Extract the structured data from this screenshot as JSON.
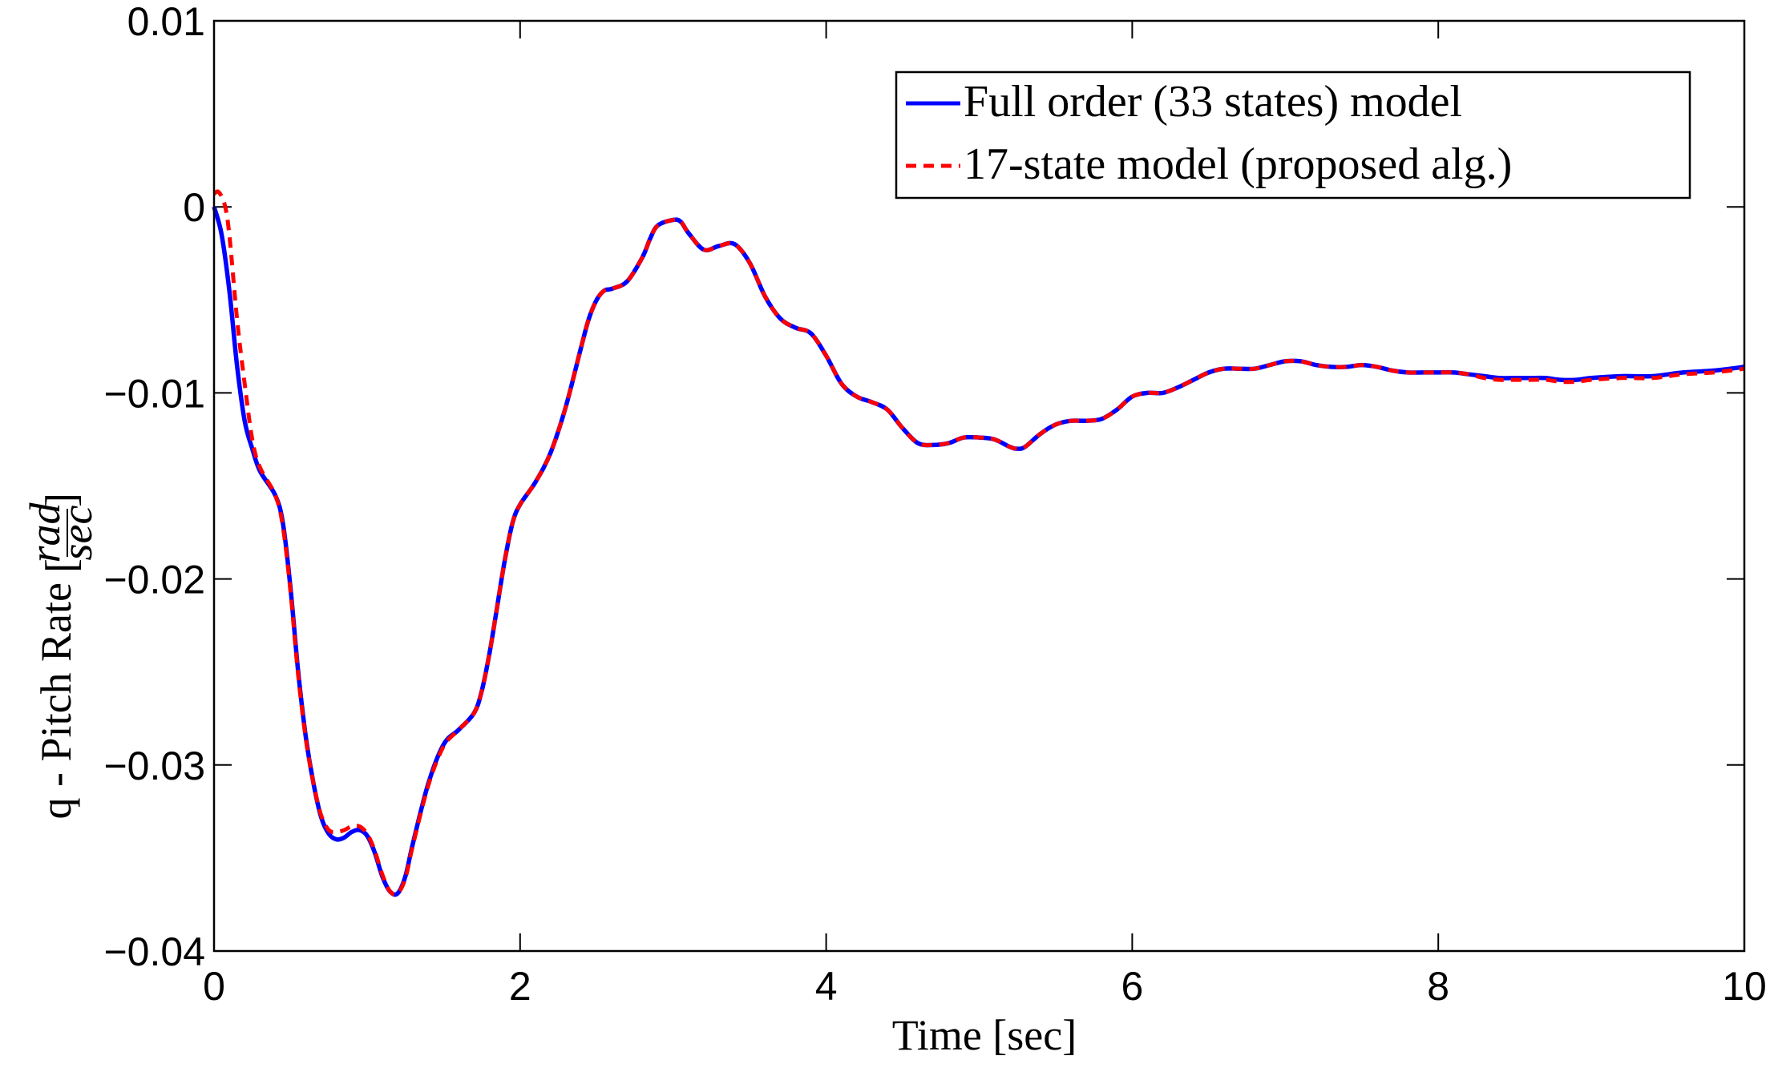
{
  "chart_data": {
    "type": "line",
    "title": "",
    "xlabel": "Time [sec]",
    "ylabel": {
      "prefix": "q - Pitch Rate",
      "unit_numerator": "rad",
      "unit_denominator": "sec"
    },
    "xlim": [
      0,
      10
    ],
    "ylim": [
      -0.04,
      0.01
    ],
    "xticks": [
      0,
      2,
      4,
      6,
      8,
      10
    ],
    "xtick_labels": [
      "0",
      "2",
      "4",
      "6",
      "8",
      "10"
    ],
    "yticks": [
      0.01,
      0,
      -0.01,
      -0.02,
      -0.03,
      -0.04
    ],
    "ytick_labels": [
      "0.01",
      "0",
      "−0.01",
      "−0.02",
      "−0.03",
      "−0.04"
    ],
    "grid": false,
    "legend_position": "top-right",
    "series": [
      {
        "name": "Full order (33 states) model",
        "color": "#0000ff",
        "style": "solid",
        "x": [
          0,
          0.05,
          0.1,
          0.15,
          0.2,
          0.25,
          0.3,
          0.4,
          0.45,
          0.5,
          0.55,
          0.6,
          0.65,
          0.7,
          0.75,
          0.8,
          0.85,
          0.9,
          0.95,
          1.0,
          1.05,
          1.1,
          1.15,
          1.2,
          1.25,
          1.3,
          1.4,
          1.5,
          1.6,
          1.7,
          1.75,
          1.8,
          1.85,
          1.9,
          1.95,
          2.0,
          2.1,
          2.2,
          2.3,
          2.4,
          2.45,
          2.5,
          2.55,
          2.6,
          2.7,
          2.8,
          2.85,
          2.9,
          3.0,
          3.05,
          3.1,
          3.2,
          3.3,
          3.4,
          3.5,
          3.6,
          3.7,
          3.8,
          3.9,
          4.0,
          4.1,
          4.2,
          4.3,
          4.4,
          4.5,
          4.6,
          4.7,
          4.8,
          4.9,
          5.0,
          5.1,
          5.2,
          5.25,
          5.3,
          5.4,
          5.5,
          5.6,
          5.7,
          5.8,
          5.9,
          6.0,
          6.1,
          6.2,
          6.3,
          6.4,
          6.5,
          6.6,
          6.7,
          6.8,
          6.9,
          7.0,
          7.1,
          7.2,
          7.3,
          7.4,
          7.5,
          7.6,
          7.7,
          7.8,
          7.9,
          8.0,
          8.1,
          8.2,
          8.3,
          8.4,
          8.5,
          8.6,
          8.7,
          8.8,
          8.9,
          9.0,
          9.2,
          9.4,
          9.6,
          9.8,
          10.0
        ],
        "y": [
          0.0,
          -0.0015,
          -0.0045,
          -0.0085,
          -0.0115,
          -0.013,
          -0.0142,
          -0.0155,
          -0.017,
          -0.0205,
          -0.025,
          -0.0285,
          -0.031,
          -0.0328,
          -0.0337,
          -0.034,
          -0.0339,
          -0.0336,
          -0.0335,
          -0.0338,
          -0.0347,
          -0.036,
          -0.0368,
          -0.0369,
          -0.036,
          -0.0342,
          -0.031,
          -0.0289,
          -0.0281,
          -0.0272,
          -0.026,
          -0.024,
          -0.0215,
          -0.019,
          -0.017,
          -0.016,
          -0.0148,
          -0.0132,
          -0.0107,
          -0.0075,
          -0.006,
          -0.005,
          -0.0045,
          -0.0044,
          -0.004,
          -0.0027,
          -0.0017,
          -0.001,
          -0.0007,
          -0.0008,
          -0.0014,
          -0.0023,
          -0.0021,
          -0.002,
          -0.003,
          -0.0048,
          -0.006,
          -0.0065,
          -0.0068,
          -0.008,
          -0.0095,
          -0.0102,
          -0.0105,
          -0.0109,
          -0.0119,
          -0.0127,
          -0.0128,
          -0.0127,
          -0.0124,
          -0.0124,
          -0.0125,
          -0.0129,
          -0.013,
          -0.0129,
          -0.0122,
          -0.0117,
          -0.0115,
          -0.0115,
          -0.0114,
          -0.0109,
          -0.0102,
          -0.01,
          -0.01,
          -0.0097,
          -0.0093,
          -0.0089,
          -0.0087,
          -0.0087,
          -0.0087,
          -0.0085,
          -0.0083,
          -0.0083,
          -0.0085,
          -0.0086,
          -0.0086,
          -0.0085,
          -0.0086,
          -0.0088,
          -0.0089,
          -0.0089,
          -0.0089,
          -0.0089,
          -0.009,
          -0.0091,
          -0.0092,
          -0.0092,
          -0.0092,
          -0.0092,
          -0.0093,
          -0.0093,
          -0.0092,
          -0.0091,
          -0.0091,
          -0.0089,
          -0.0088,
          -0.0086
        ]
      },
      {
        "name": "17-state model (proposed alg.)",
        "color": "#ff0000",
        "style": "dashed",
        "x": [
          0,
          0.03,
          0.07,
          0.1,
          0.15,
          0.2,
          0.25,
          0.3,
          0.4,
          0.45,
          0.5,
          0.55,
          0.6,
          0.65,
          0.7,
          0.75,
          0.8,
          0.85,
          0.9,
          0.95,
          1.0,
          1.05,
          1.1,
          1.15,
          1.2,
          1.25,
          1.3,
          1.4,
          1.5,
          1.6,
          1.7,
          1.75,
          1.8,
          1.85,
          1.9,
          1.95,
          2.0,
          2.1,
          2.2,
          2.3,
          2.4,
          2.45,
          2.5,
          2.55,
          2.6,
          2.7,
          2.8,
          2.85,
          2.9,
          3.0,
          3.05,
          3.1,
          3.2,
          3.3,
          3.4,
          3.5,
          3.6,
          3.7,
          3.8,
          3.9,
          4.0,
          4.1,
          4.2,
          4.3,
          4.4,
          4.5,
          4.6,
          4.7,
          4.8,
          4.9,
          5.0,
          5.1,
          5.2,
          5.25,
          5.3,
          5.4,
          5.5,
          5.6,
          5.7,
          5.8,
          5.9,
          6.0,
          6.1,
          6.2,
          6.3,
          6.4,
          6.5,
          6.6,
          6.7,
          6.8,
          6.9,
          7.0,
          7.1,
          7.2,
          7.3,
          7.4,
          7.5,
          7.6,
          7.7,
          7.8,
          7.9,
          8.0,
          8.1,
          8.2,
          8.3,
          8.4,
          8.5,
          8.6,
          8.7,
          8.8,
          8.9,
          9.0,
          9.2,
          9.4,
          9.6,
          9.8,
          10.0
        ],
        "y": [
          0.0007,
          0.0008,
          0.0001,
          -0.0015,
          -0.006,
          -0.0095,
          -0.0125,
          -0.014,
          -0.0155,
          -0.0172,
          -0.0207,
          -0.0252,
          -0.0286,
          -0.031,
          -0.0327,
          -0.0335,
          -0.0336,
          -0.0335,
          -0.0333,
          -0.0333,
          -0.0337,
          -0.0346,
          -0.0359,
          -0.0368,
          -0.0369,
          -0.0361,
          -0.0343,
          -0.0311,
          -0.029,
          -0.0281,
          -0.0272,
          -0.026,
          -0.024,
          -0.0215,
          -0.019,
          -0.017,
          -0.016,
          -0.0148,
          -0.0132,
          -0.0107,
          -0.0075,
          -0.006,
          -0.005,
          -0.0045,
          -0.0044,
          -0.004,
          -0.0027,
          -0.0017,
          -0.001,
          -0.0007,
          -0.0008,
          -0.0014,
          -0.0023,
          -0.0021,
          -0.002,
          -0.003,
          -0.0048,
          -0.006,
          -0.0065,
          -0.0068,
          -0.008,
          -0.0095,
          -0.0102,
          -0.0105,
          -0.0109,
          -0.0119,
          -0.0127,
          -0.0128,
          -0.0127,
          -0.0124,
          -0.0124,
          -0.0125,
          -0.0129,
          -0.013,
          -0.0129,
          -0.0122,
          -0.0117,
          -0.0115,
          -0.0115,
          -0.0114,
          -0.0109,
          -0.0102,
          -0.01,
          -0.01,
          -0.0097,
          -0.0093,
          -0.0089,
          -0.0087,
          -0.0087,
          -0.0087,
          -0.0085,
          -0.0083,
          -0.0083,
          -0.0085,
          -0.0086,
          -0.0086,
          -0.0085,
          -0.0086,
          -0.0088,
          -0.0089,
          -0.0089,
          -0.0089,
          -0.0089,
          -0.009,
          -0.0092,
          -0.0093,
          -0.0093,
          -0.0093,
          -0.0093,
          -0.0094,
          -0.0094,
          -0.0093,
          -0.0092,
          -0.0092,
          -0.009,
          -0.0089,
          -0.0087
        ]
      }
    ]
  }
}
